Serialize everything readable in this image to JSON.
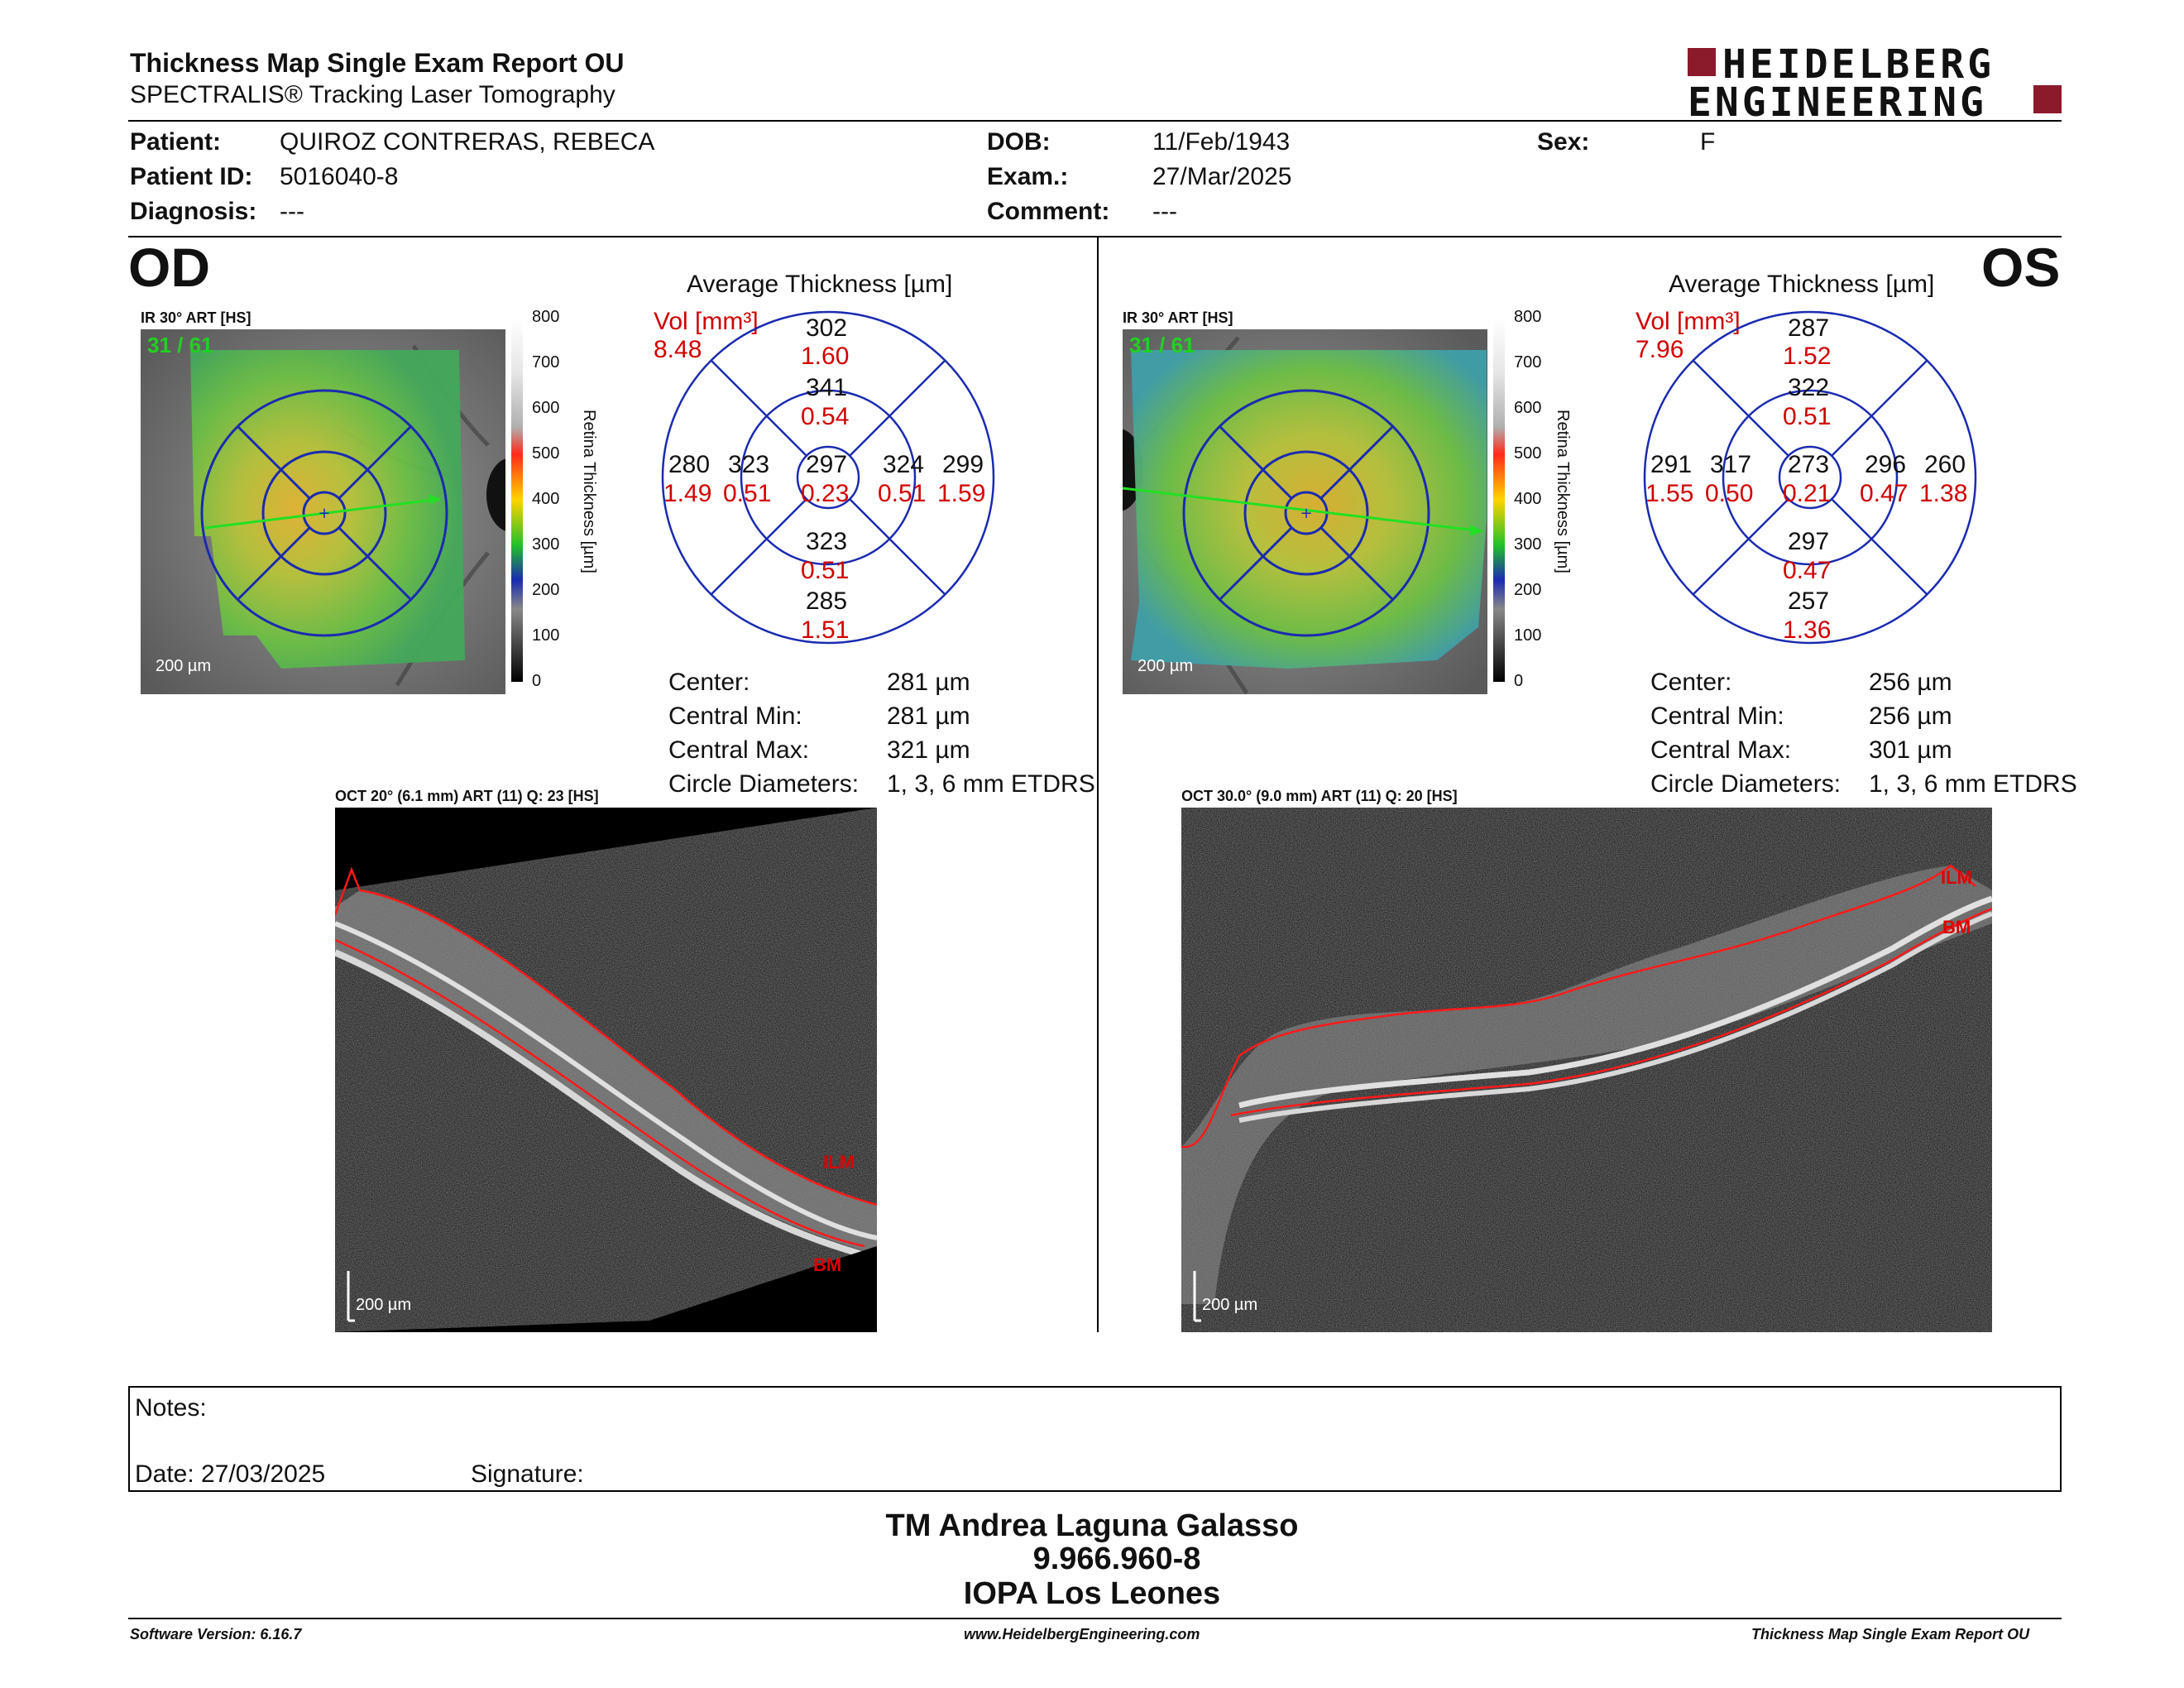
{
  "header": {
    "title": "Thickness Map Single Exam Report OU",
    "subtitle": "SPECTRALIS® Tracking Laser Tomography",
    "logo_line1": "HEIDELBERG",
    "logo_line2": "ENGINEERING"
  },
  "patient": {
    "patient_label": "Patient:",
    "patient_value": "QUIROZ CONTRERAS, REBECA",
    "id_label": "Patient ID:",
    "id_value": "5016040-8",
    "diag_label": "Diagnosis:",
    "diag_value": "---",
    "dob_label": "DOB:",
    "dob_value": "11/Feb/1943",
    "exam_label": "Exam.:",
    "exam_value": "27/Mar/2025",
    "comment_label": "Comment:",
    "comment_value": "---",
    "sex_label": "Sex:",
    "sex_value": "F"
  },
  "od": {
    "eye": "OD",
    "ir_caption": "IR 30° ART [HS]",
    "frame": "31 / 61",
    "scale": "200 µm",
    "avg_title": "Average Thickness [µm]",
    "vol_label": "Vol [mm³]",
    "vol_value": "8.48",
    "sectors": {
      "outer_sup": [
        "302",
        "1.60"
      ],
      "inner_sup": [
        "341",
        "0.54"
      ],
      "outer_temp": [
        "280",
        "1.49"
      ],
      "inner_temp": [
        "323",
        "0.51"
      ],
      "center": [
        "297",
        "0.23"
      ],
      "inner_nasal": [
        "324",
        "0.51"
      ],
      "outer_nasal": [
        "299",
        "1.59"
      ],
      "inner_inf": [
        "323",
        "0.51"
      ],
      "outer_inf": [
        "285",
        "1.51"
      ]
    },
    "stats": [
      [
        "Center:",
        "281 µm"
      ],
      [
        "Central Min:",
        "281 µm"
      ],
      [
        "Central Max:",
        "321 µm"
      ],
      [
        "Circle Diameters:",
        "1, 3, 6 mm ETDRS"
      ]
    ],
    "oct_caption": "OCT 20° (6.1 mm) ART (11) Q: 23 [HS]",
    "oct_scale": "200 µm"
  },
  "os": {
    "eye": "OS",
    "ir_caption": "IR 30° ART [HS]",
    "frame": "31 / 61",
    "scale": "200 µm",
    "avg_title": "Average Thickness [µm]",
    "vol_label": "Vol [mm³]",
    "vol_value": "7.96",
    "sectors": {
      "outer_sup": [
        "287",
        "1.52"
      ],
      "inner_sup": [
        "322",
        "0.51"
      ],
      "outer_temp": [
        "291",
        "1.55"
      ],
      "inner_temp": [
        "317",
        "0.50"
      ],
      "center": [
        "273",
        "0.21"
      ],
      "inner_nasal": [
        "296",
        "0.47"
      ],
      "outer_nasal": [
        "260",
        "1.38"
      ],
      "inner_inf": [
        "297",
        "0.47"
      ],
      "outer_inf": [
        "257",
        "1.36"
      ]
    },
    "stats": [
      [
        "Center:",
        "256 µm"
      ],
      [
        "Central Min:",
        "256 µm"
      ],
      [
        "Central Max:",
        "301 µm"
      ],
      [
        "Circle Diameters:",
        "1, 3, 6 mm ETDRS"
      ]
    ],
    "oct_caption": "OCT 30.0° (9.0 mm) ART (11) Q: 20 [HS]",
    "oct_scale": "200 µm"
  },
  "colorbar": {
    "ticks": [
      "800",
      "700",
      "600",
      "500",
      "400",
      "300",
      "200",
      "100",
      "0"
    ],
    "label": "Retina Thickness [µm]"
  },
  "oct_labels": {
    "ilm": "ILM",
    "bm": "BM"
  },
  "notes": {
    "notes_label": "Notes:",
    "date_label": "Date: 27/03/2025",
    "signature_label": "Signature:"
  },
  "footer": {
    "name": "TM Andrea Laguna Galasso",
    "rut": "9.966.960-8",
    "institution": "IOPA Los Leones",
    "software": "Software Version: 6.16.7",
    "website": "www.HeidelbergEngineering.com",
    "report": "Thickness Map Single Exam Report OU"
  },
  "colors": {
    "accent_red": "#d00000",
    "logo_red": "#8b1a2b",
    "grid_blue": "#1a2bb0"
  }
}
